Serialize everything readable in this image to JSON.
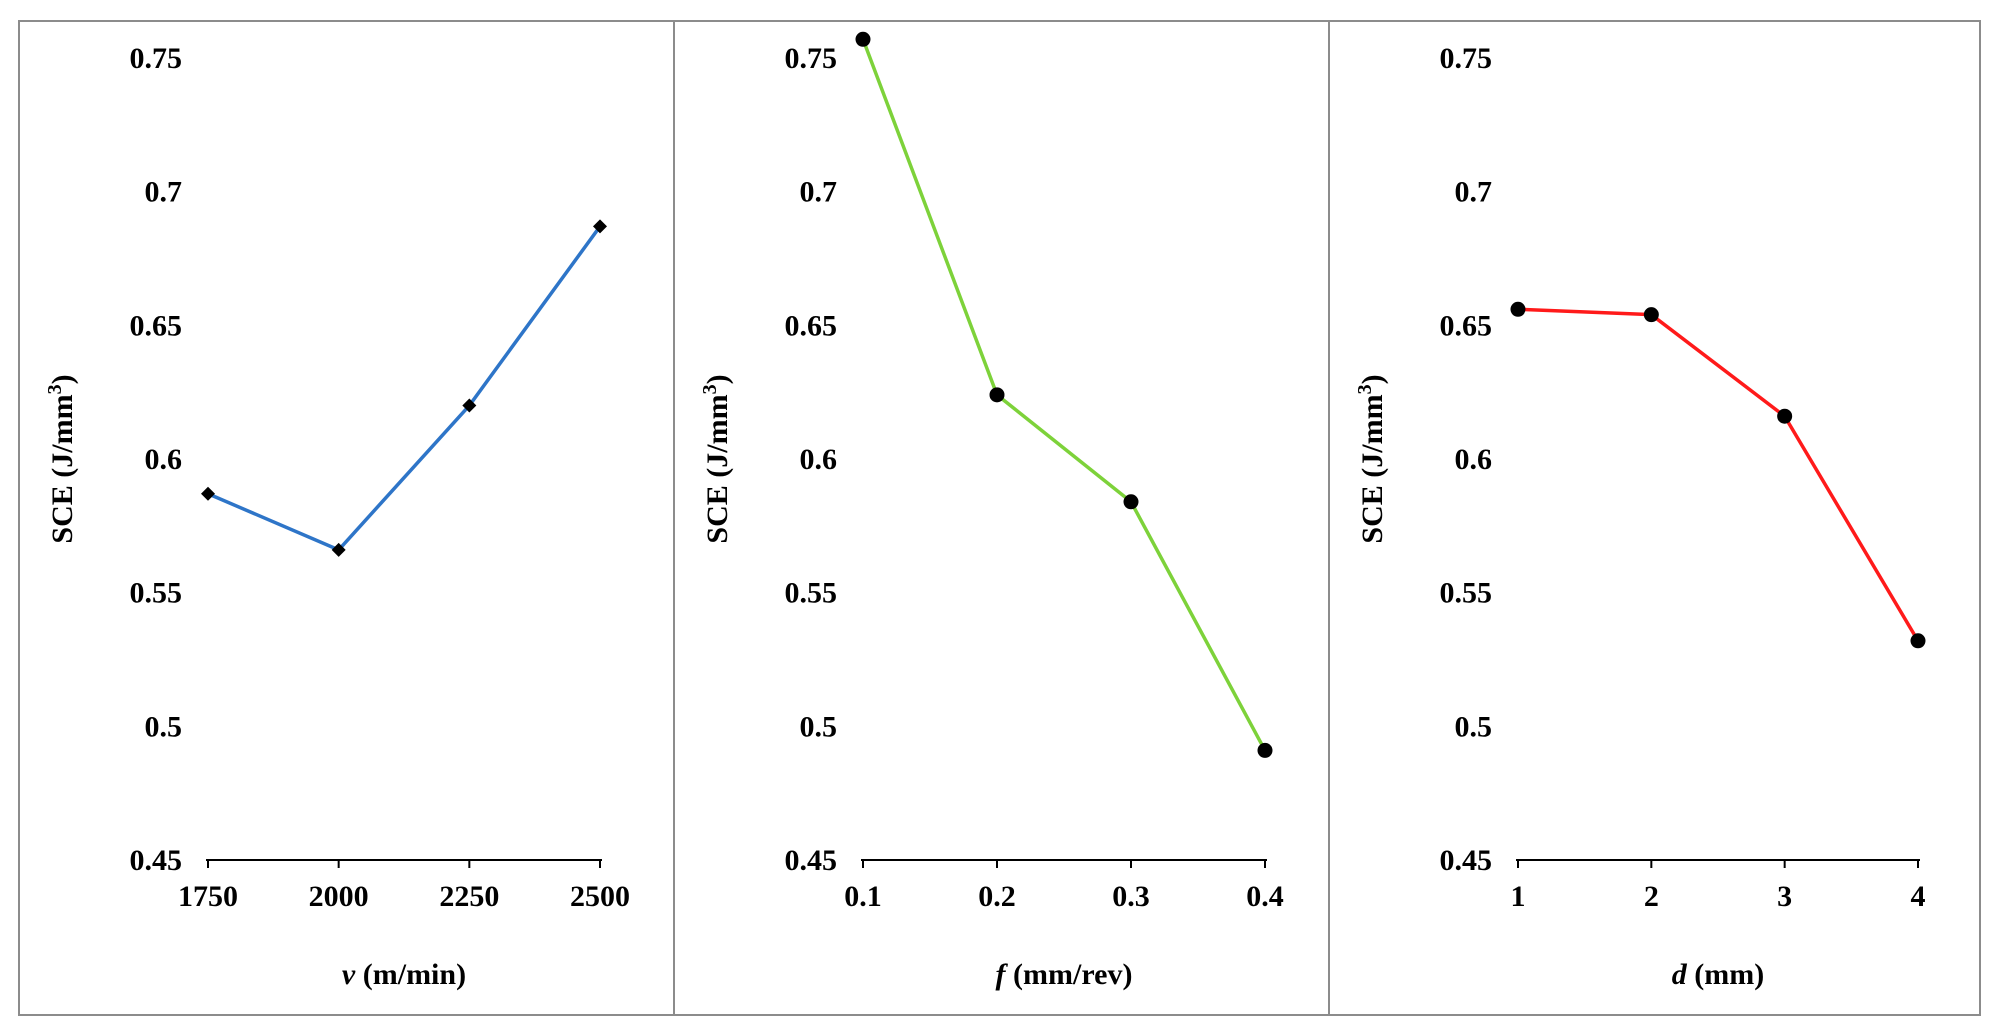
{
  "chart_data": [
    {
      "type": "line",
      "title": "",
      "xlabel": "v (m/min)",
      "xlabel_var": "v",
      "xlabel_unit": " (m/min)",
      "ylabel": "SCE (J/mm3)",
      "ylabel_main": "SCE (J/mm",
      "ylabel_sup": "3",
      "ylabel_end": ")",
      "categories": [
        "1750",
        "2000",
        "2250",
        "2500"
      ],
      "values": [
        0.587,
        0.566,
        0.62,
        0.687
      ],
      "yticks": [
        "0.45",
        "0.5",
        "0.55",
        "0.6",
        "0.65",
        "0.7",
        "0.75"
      ],
      "ylim": [
        0.45,
        0.75
      ],
      "grid": false,
      "line_color": "#2e75c8",
      "marker": "diamond"
    },
    {
      "type": "line",
      "title": "",
      "xlabel": "f (mm/rev)",
      "xlabel_var": "f",
      "xlabel_unit": " (mm/rev)",
      "ylabel": "SCE (J/mm3)",
      "ylabel_main": "SCE (J/mm",
      "ylabel_sup": "3",
      "ylabel_end": ")",
      "categories": [
        "0.1",
        "0.2",
        "0.3",
        "0.4"
      ],
      "values": [
        0.757,
        0.624,
        0.584,
        0.491
      ],
      "yticks": [
        "0.45",
        "0.5",
        "0.55",
        "0.6",
        "0.65",
        "0.7",
        "0.75"
      ],
      "ylim": [
        0.45,
        0.75
      ],
      "grid": false,
      "line_color": "#7dd23a",
      "marker": "circle"
    },
    {
      "type": "line",
      "title": "",
      "xlabel": "d (mm)",
      "xlabel_var": "d",
      "xlabel_unit": " (mm)",
      "ylabel": "SCE (J/mm3)",
      "ylabel_main": "SCE (J/mm",
      "ylabel_sup": "3",
      "ylabel_end": ")",
      "categories": [
        "1",
        "2",
        "3",
        "4"
      ],
      "values": [
        0.656,
        0.654,
        0.616,
        0.532
      ],
      "yticks": [
        "0.45",
        "0.5",
        "0.55",
        "0.6",
        "0.65",
        "0.7",
        "0.75"
      ],
      "ylim": [
        0.45,
        0.75
      ],
      "grid": false,
      "line_color": "#ff1a1a",
      "marker": "circle"
    }
  ]
}
